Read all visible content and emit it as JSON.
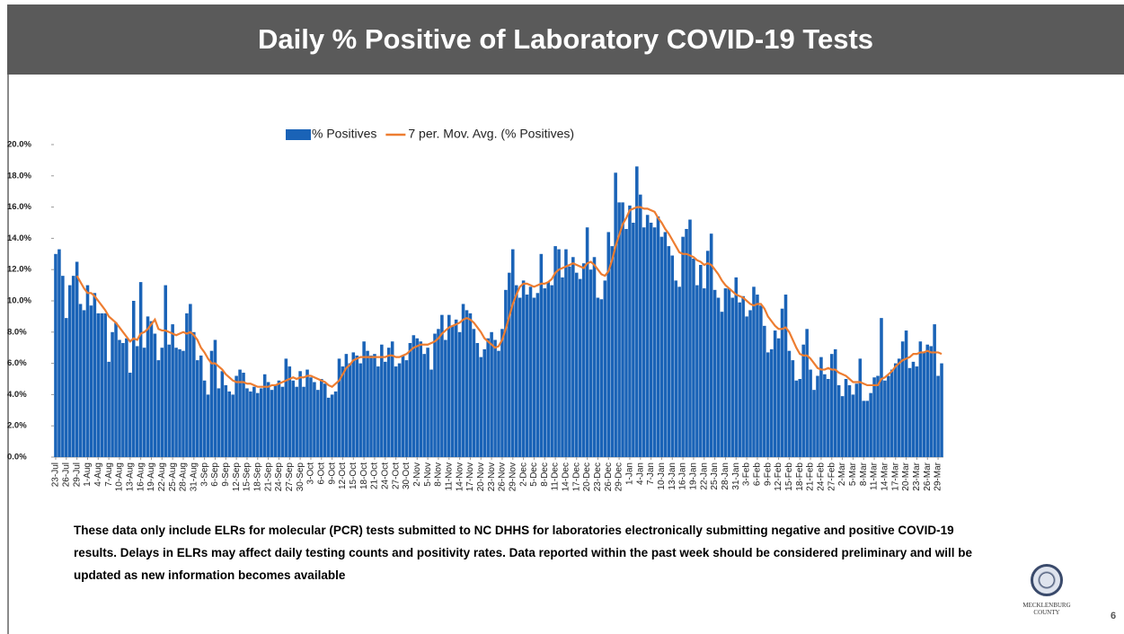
{
  "chart_data": {
    "type": "bar",
    "title": "Daily % Positive of Laboratory COVID-19 Tests",
    "categories": [
      "23-Jul",
      null,
      null,
      "26-Jul",
      null,
      null,
      "29-Jul",
      null,
      null,
      "1-Aug",
      null,
      null,
      "4-Aug",
      null,
      null,
      "7-Aug",
      null,
      null,
      "10-Aug",
      null,
      null,
      "13-Aug",
      null,
      null,
      "16-Aug",
      null,
      null,
      "19-Aug",
      null,
      null,
      "22-Aug",
      null,
      null,
      "25-Aug",
      null,
      null,
      "28-Aug",
      null,
      null,
      "31-Aug",
      null,
      null,
      "3-Sep",
      null,
      null,
      "6-Sep",
      null,
      null,
      "9-Sep",
      null,
      null,
      "12-Sep",
      null,
      null,
      "15-Sep",
      null,
      null,
      "18-Sep",
      null,
      null,
      "21-Sep",
      null,
      null,
      "24-Sep",
      null,
      null,
      "27-Sep",
      null,
      null,
      "30-Sep",
      null,
      null,
      "3-Oct",
      null,
      null,
      "6-Oct",
      null,
      null,
      "9-Oct",
      null,
      null,
      "12-Oct",
      null,
      null,
      "15-Oct",
      null,
      null,
      "18-Oct",
      null,
      null,
      "21-Oct",
      null,
      null,
      "24-Oct",
      null,
      null,
      "27-Oct",
      null,
      null,
      "30-Oct",
      null,
      null,
      "2-Nov",
      null,
      null,
      "5-Nov",
      null,
      null,
      "8-Nov",
      null,
      null,
      "11-Nov",
      null,
      null,
      "14-Nov",
      null,
      null,
      "17-Nov",
      null,
      null,
      "20-Nov",
      null,
      null,
      "23-Nov",
      null,
      null,
      "26-Nov",
      null,
      null,
      "29-Nov",
      null,
      null,
      "2-Dec",
      null,
      null,
      "5-Dec",
      null,
      null,
      "8-Dec",
      null,
      null,
      "11-Dec",
      null,
      null,
      "14-Dec",
      null,
      null,
      "17-Dec",
      null,
      null,
      "20-Dec",
      null,
      null,
      "23-Dec",
      null,
      null,
      "26-Dec",
      null,
      null,
      "29-Dec",
      null,
      null,
      "1-Jan",
      null,
      null,
      "4-Jan",
      null,
      null,
      "7-Jan",
      null,
      null,
      "10-Jan",
      null,
      null,
      "13-Jan",
      null,
      null,
      "16-Jan",
      null,
      null,
      "19-Jan",
      null,
      null,
      "22-Jan",
      null,
      null,
      "25-Jan",
      null,
      null,
      "28-Jan",
      null,
      null,
      "31-Jan",
      null,
      null,
      "3-Feb",
      null,
      null,
      "6-Feb",
      null,
      null,
      "9-Feb",
      null,
      null,
      "12-Feb",
      null,
      null,
      "15-Feb",
      null,
      null,
      "18-Feb",
      null,
      null,
      "21-Feb",
      null,
      null,
      "24-Feb",
      null,
      null,
      "27-Feb",
      null,
      null,
      "2-Mar",
      null,
      null,
      "5-Mar",
      null,
      null,
      "8-Mar",
      null,
      null,
      "11-Mar",
      null,
      null,
      "14-Mar",
      null,
      null,
      "17-Mar",
      null,
      null,
      "20-Mar",
      null,
      null,
      "23-Mar",
      null,
      null,
      "26-Mar",
      null,
      null,
      "29-Mar",
      null
    ],
    "series": [
      {
        "name": "% Positives",
        "type": "bar",
        "color": "#1a63b7",
        "values": [
          13.0,
          13.3,
          11.6,
          8.9,
          11.0,
          11.6,
          12.5,
          9.8,
          9.4,
          11.0,
          9.7,
          10.5,
          9.2,
          9.2,
          9.2,
          6.1,
          8.0,
          8.6,
          7.5,
          7.3,
          7.6,
          5.4,
          10.0,
          7.1,
          11.2,
          7.0,
          9.0,
          8.7,
          7.9,
          6.2,
          7.0,
          11.0,
          7.2,
          8.5,
          7.0,
          6.9,
          6.8,
          9.2,
          9.8,
          8.0,
          6.2,
          6.5,
          4.9,
          4.0,
          6.8,
          7.5,
          4.4,
          5.5,
          4.6,
          4.2,
          4.0,
          5.2,
          5.6,
          5.4,
          4.4,
          4.2,
          4.5,
          4.1,
          4.4,
          5.3,
          4.8,
          4.3,
          4.6,
          4.9,
          4.5,
          6.3,
          5.8,
          4.9,
          4.5,
          5.5,
          4.5,
          5.6,
          5.1,
          4.8,
          4.3,
          5.0,
          4.7,
          3.8,
          4.0,
          4.2,
          6.3,
          5.8,
          6.6,
          6.0,
          6.7,
          6.5,
          6.0,
          7.4,
          6.8,
          6.5,
          6.6,
          5.8,
          7.2,
          6.1,
          7.0,
          7.4,
          5.8,
          6.0,
          6.5,
          6.2,
          7.3,
          7.8,
          7.6,
          7.4,
          6.6,
          7.0,
          5.6,
          7.9,
          8.2,
          9.1,
          7.5,
          9.1,
          8.4,
          8.8,
          8.0,
          9.8,
          9.4,
          9.2,
          8.2,
          7.3,
          6.4,
          6.9,
          7.6,
          8.0,
          7.5,
          6.8,
          8.2,
          10.7,
          11.8,
          13.3,
          11.0,
          10.2,
          11.3,
          10.4,
          10.9,
          10.2,
          10.5,
          13.0,
          10.8,
          11.2,
          11.0,
          13.5,
          13.3,
          11.5,
          13.3,
          12.2,
          12.8,
          11.8,
          11.4,
          12.4,
          14.7,
          12.0,
          12.8,
          10.2,
          10.1,
          11.3,
          14.4,
          13.5,
          18.2,
          16.3,
          16.3,
          14.6,
          16.1,
          15.0,
          18.6,
          16.8,
          14.7,
          15.5,
          15.0,
          14.7,
          15.4,
          14.1,
          14.4,
          13.5,
          12.9,
          11.3,
          10.9,
          14.1,
          14.6,
          15.2,
          12.7,
          11.0,
          12.3,
          10.8,
          13.2,
          14.3,
          10.7,
          10.2,
          9.3,
          10.8,
          10.8,
          10.2,
          11.5,
          9.9,
          10.3,
          9.0,
          9.4,
          10.9,
          10.4,
          9.7,
          8.4,
          6.7,
          6.9,
          8.1,
          7.6,
          9.5,
          10.4,
          6.8,
          6.2,
          4.9,
          5.0,
          7.2,
          8.2,
          5.6,
          4.3,
          5.2,
          6.4,
          5.3,
          5.0,
          6.6,
          6.9,
          4.6,
          3.9,
          5.0,
          4.6,
          4.0,
          4.7,
          6.3,
          3.6,
          3.6,
          4.1,
          5.1,
          5.2,
          8.9,
          4.9,
          5.2,
          5.6,
          6.0,
          6.3,
          7.4,
          8.1,
          5.7,
          6.1,
          5.8,
          7.4,
          6.7,
          7.2,
          7.1,
          8.5,
          5.2,
          6.0
        ]
      },
      {
        "name": "7 per. Mov. Avg. (% Positives)",
        "type": "line",
        "color": "#ed7d31",
        "values": [
          null,
          null,
          null,
          null,
          null,
          null,
          11.6,
          11.2,
          10.8,
          10.5,
          10.5,
          10.3,
          10.0,
          9.7,
          9.4,
          9.0,
          8.8,
          8.6,
          8.3,
          8.0,
          7.7,
          7.4,
          7.6,
          7.5,
          7.9,
          8.0,
          8.2,
          8.5,
          8.8,
          8.2,
          8.1,
          8.1,
          8.0,
          7.9,
          7.8,
          7.9,
          8.0,
          7.9,
          8.0,
          7.8,
          7.5,
          7.0,
          6.7,
          6.3,
          6.0,
          6.0,
          5.8,
          5.6,
          5.3,
          5.1,
          4.9,
          4.8,
          4.8,
          4.8,
          4.7,
          4.7,
          4.6,
          4.5,
          4.5,
          4.5,
          4.5,
          4.6,
          4.6,
          4.7,
          4.8,
          4.9,
          5.0,
          5.1,
          5.0,
          5.1,
          5.1,
          5.2,
          5.2,
          5.1,
          5.0,
          4.9,
          4.8,
          4.6,
          4.5,
          4.7,
          4.9,
          5.3,
          5.7,
          5.9,
          6.2,
          6.3,
          6.4,
          6.4,
          6.4,
          6.4,
          6.4,
          6.4,
          6.4,
          6.4,
          6.5,
          6.5,
          6.4,
          6.4,
          6.5,
          6.6,
          6.8,
          7.0,
          7.1,
          7.2,
          7.2,
          7.2,
          7.3,
          7.4,
          7.6,
          7.9,
          8.1,
          8.3,
          8.4,
          8.5,
          8.6,
          8.8,
          8.9,
          8.8,
          8.6,
          8.3,
          8.0,
          7.6,
          7.4,
          7.2,
          7.0,
          7.1,
          7.5,
          8.2,
          9.0,
          9.8,
          10.4,
          10.9,
          11.1,
          11.1,
          11.0,
          10.9,
          11.0,
          11.1,
          11.1,
          11.2,
          11.4,
          11.8,
          12.0,
          12.1,
          12.2,
          12.3,
          12.4,
          12.3,
          12.2,
          12.1,
          12.4,
          12.5,
          12.3,
          12.0,
          11.7,
          11.6,
          11.9,
          12.6,
          13.5,
          14.2,
          14.9,
          15.3,
          15.8,
          15.9,
          16.0,
          16.0,
          15.9,
          15.9,
          15.8,
          15.7,
          15.3,
          15.0,
          14.6,
          14.3,
          13.9,
          13.5,
          13.1,
          13.0,
          13.0,
          12.9,
          12.8,
          12.6,
          12.5,
          12.3,
          12.4,
          12.3,
          12.0,
          11.7,
          11.3,
          11.0,
          10.8,
          10.6,
          10.4,
          10.3,
          10.2,
          10.0,
          9.8,
          9.7,
          9.8,
          9.8,
          9.5,
          9.0,
          8.7,
          8.4,
          8.2,
          8.2,
          8.3,
          8.0,
          7.5,
          7.0,
          6.6,
          6.5,
          6.5,
          6.3,
          6.0,
          5.7,
          5.6,
          5.6,
          5.7,
          5.6,
          5.6,
          5.4,
          5.3,
          5.2,
          5.0,
          4.8,
          4.8,
          4.8,
          4.7,
          4.6,
          4.6,
          4.6,
          4.6,
          5.0,
          5.1,
          5.3,
          5.5,
          5.8,
          6.0,
          6.2,
          6.3,
          6.4,
          6.6,
          6.6,
          6.7,
          6.7,
          6.8,
          6.7,
          6.7,
          6.7,
          6.6
        ]
      }
    ],
    "ylim": [
      0,
      20
    ],
    "yticks": [
      {
        "value": 0,
        "label": "0.0%"
      },
      {
        "value": 2,
        "label": "2.0%"
      },
      {
        "value": 4,
        "label": "4.0%"
      },
      {
        "value": 6,
        "label": "6.0%"
      },
      {
        "value": 8,
        "label": "8.0%"
      },
      {
        "value": 10,
        "label": "10.0%"
      },
      {
        "value": 12,
        "label": "12.0%"
      },
      {
        "value": 14,
        "label": "14.0%"
      },
      {
        "value": 16,
        "label": "16.0%"
      },
      {
        "value": 18,
        "label": "18.0%"
      },
      {
        "value": 20,
        "label": "20.0%"
      }
    ],
    "legend": "top"
  },
  "footnote": [
    "These data only include ELRs for molecular (PCR) tests submitted to NC DHHS for laboratories electronically submitting negative and positive COVID-19",
    "results. Delays in ELRs may affect daily testing counts and positivity rates.  Data reported within the past week should be considered preliminary and will be",
    "updated as new information becomes available"
  ],
  "logo": "MECKLENBURG COUNTY",
  "page_number": "6"
}
